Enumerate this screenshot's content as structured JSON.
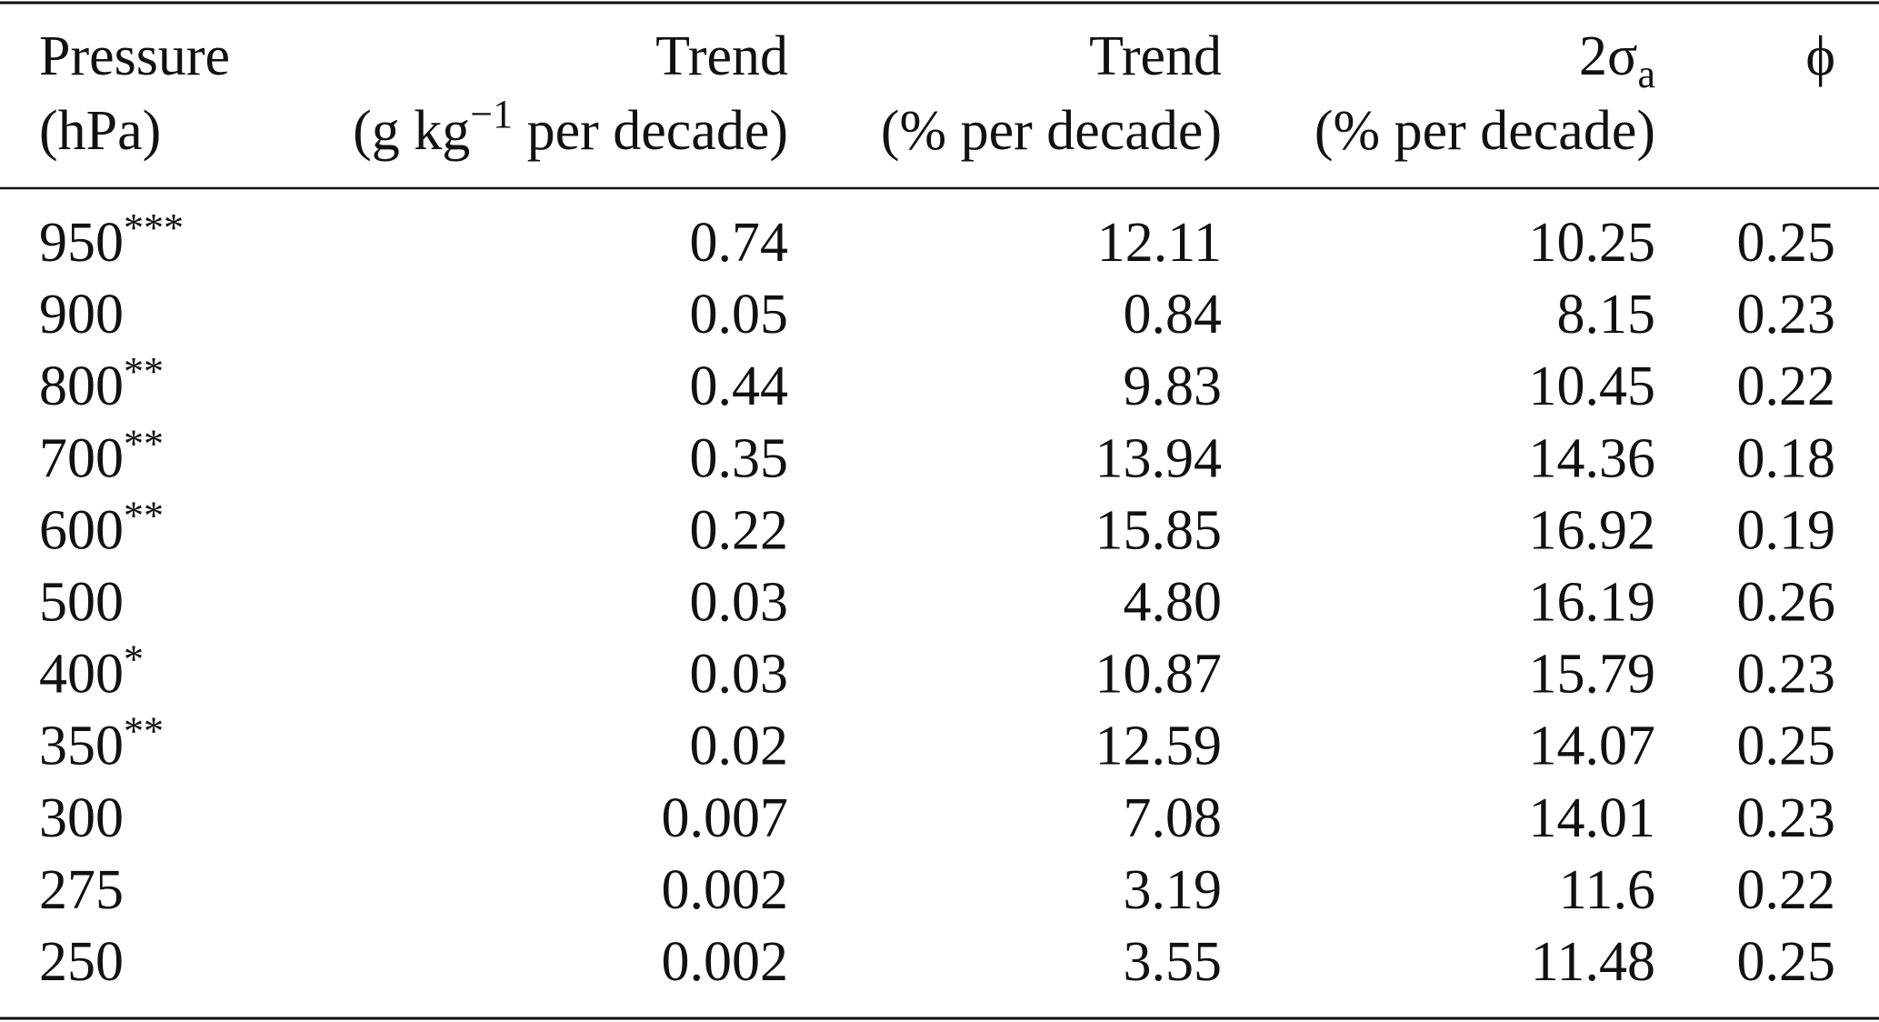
{
  "table": {
    "header": [
      {
        "line1": "Pressure",
        "line2": "(hPa)"
      },
      {
        "line1": "Trend",
        "line2": {
          "pre": "(g kg",
          "sup": "−1",
          "post": " per decade)"
        }
      },
      {
        "line1": "Trend",
        "line2": "(% per decade)"
      },
      {
        "line1": {
          "pre": "2σ",
          "sub": "a"
        },
        "line2": "(% per decade)"
      },
      {
        "line1": "ϕ"
      }
    ],
    "rows": [
      {
        "pressure": "950",
        "significance": "***",
        "values": [
          "0.74",
          "12.11",
          "10.25",
          "0.25"
        ]
      },
      {
        "pressure": "900",
        "values": [
          "0.05",
          "0.84",
          "8.15",
          "0.23"
        ]
      },
      {
        "pressure": "800",
        "significance": "**",
        "values": [
          "0.44",
          "9.83",
          "10.45",
          "0.22"
        ]
      },
      {
        "pressure": "700",
        "significance": "**",
        "values": [
          "0.35",
          "13.94",
          "14.36",
          "0.18"
        ]
      },
      {
        "pressure": "600",
        "significance": "**",
        "values": [
          "0.22",
          "15.85",
          "16.92",
          "0.19"
        ]
      },
      {
        "pressure": "500",
        "values": [
          "0.03",
          "4.80",
          "16.19",
          "0.26"
        ]
      },
      {
        "pressure": "400",
        "significance": "*",
        "values": [
          "0.03",
          "10.87",
          "15.79",
          "0.23"
        ]
      },
      {
        "pressure": "350",
        "significance": "**",
        "values": [
          "0.02",
          "12.59",
          "14.07",
          "0.25"
        ]
      },
      {
        "pressure": "300",
        "values": [
          "0.007",
          "7.08",
          "14.01",
          "0.23"
        ]
      },
      {
        "pressure": "275",
        "values": [
          "0.002",
          "3.19",
          "11.6",
          "0.22"
        ]
      },
      {
        "pressure": "250",
        "values": [
          "0.002",
          "3.55",
          "11.48",
          "0.25"
        ]
      }
    ]
  }
}
